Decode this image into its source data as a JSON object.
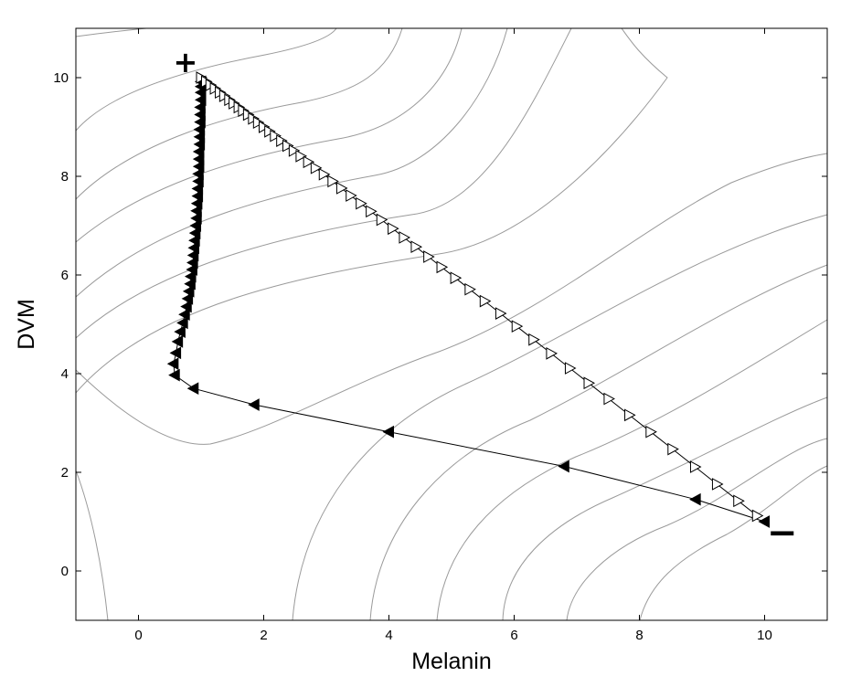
{
  "chart_data": {
    "type": "line",
    "title": "",
    "xlabel": "Melanin",
    "ylabel": "DVM",
    "xlim": [
      -1,
      11
    ],
    "ylim": [
      -1,
      11
    ],
    "xticks": [
      0,
      2,
      4,
      6,
      8,
      10
    ],
    "yticks": [
      0,
      2,
      4,
      6,
      8,
      10
    ],
    "grid": false,
    "legend": "none",
    "annotations": [
      {
        "text": "+",
        "x": 0.75,
        "y": 10.3
      },
      {
        "text": "−",
        "x": 10.28,
        "y": 0.68
      }
    ],
    "colors": {
      "contour": "#9a9a9a",
      "trajectory": "#000000",
      "axis": "#000000"
    },
    "series": [
      {
        "marker": "filled-left-triangle",
        "points": [
          [
            10.0,
            1.0
          ],
          [
            8.9,
            1.45
          ],
          [
            6.8,
            2.12
          ],
          [
            4.0,
            2.82
          ],
          [
            1.85,
            3.37
          ],
          [
            0.88,
            3.7
          ],
          [
            0.58,
            3.97
          ],
          [
            0.56,
            4.2
          ],
          [
            0.6,
            4.42
          ],
          [
            0.63,
            4.65
          ],
          [
            0.67,
            4.85
          ],
          [
            0.71,
            5.03
          ],
          [
            0.74,
            5.2
          ],
          [
            0.77,
            5.36
          ],
          [
            0.79,
            5.52
          ],
          [
            0.81,
            5.67
          ],
          [
            0.83,
            5.82
          ],
          [
            0.84,
            5.97
          ],
          [
            0.86,
            6.11
          ],
          [
            0.87,
            6.25
          ],
          [
            0.88,
            6.4
          ],
          [
            0.89,
            6.55
          ],
          [
            0.9,
            6.7
          ],
          [
            0.91,
            6.85
          ],
          [
            0.92,
            7.0
          ],
          [
            0.93,
            7.15
          ],
          [
            0.93,
            7.3
          ],
          [
            0.94,
            7.45
          ],
          [
            0.95,
            7.6
          ],
          [
            0.95,
            7.75
          ],
          [
            0.96,
            7.9
          ],
          [
            0.96,
            8.05
          ],
          [
            0.97,
            8.2
          ],
          [
            0.97,
            8.35
          ],
          [
            0.97,
            8.5
          ],
          [
            0.98,
            8.65
          ],
          [
            0.98,
            8.8
          ],
          [
            0.98,
            8.95
          ],
          [
            0.99,
            9.1
          ],
          [
            0.99,
            9.25
          ],
          [
            0.99,
            9.4
          ],
          [
            1.0,
            9.55
          ],
          [
            1.0,
            9.7
          ],
          [
            1.0,
            9.82
          ],
          [
            1.0,
            9.92
          ]
        ]
      },
      {
        "marker": "open-right-triangle",
        "points": [
          [
            1.0,
            10.0
          ],
          [
            1.08,
            9.92
          ],
          [
            1.15,
            9.85
          ],
          [
            1.22,
            9.78
          ],
          [
            1.3,
            9.7
          ],
          [
            1.37,
            9.63
          ],
          [
            1.45,
            9.55
          ],
          [
            1.52,
            9.48
          ],
          [
            1.6,
            9.4
          ],
          [
            1.67,
            9.33
          ],
          [
            1.75,
            9.25
          ],
          [
            1.83,
            9.17
          ],
          [
            1.91,
            9.09
          ],
          [
            2.0,
            9.0
          ],
          [
            2.09,
            8.91
          ],
          [
            2.18,
            8.82
          ],
          [
            2.28,
            8.72
          ],
          [
            2.38,
            8.62
          ],
          [
            2.48,
            8.52
          ],
          [
            2.59,
            8.41
          ],
          [
            2.71,
            8.29
          ],
          [
            2.83,
            8.17
          ],
          [
            2.96,
            8.04
          ],
          [
            3.1,
            7.9
          ],
          [
            3.24,
            7.76
          ],
          [
            3.39,
            7.61
          ],
          [
            3.55,
            7.45
          ],
          [
            3.71,
            7.29
          ],
          [
            3.88,
            7.12
          ],
          [
            4.06,
            6.94
          ],
          [
            4.24,
            6.76
          ],
          [
            4.43,
            6.57
          ],
          [
            4.63,
            6.37
          ],
          [
            4.84,
            6.16
          ],
          [
            5.06,
            5.94
          ],
          [
            5.29,
            5.71
          ],
          [
            5.53,
            5.47
          ],
          [
            5.78,
            5.22
          ],
          [
            6.04,
            4.96
          ],
          [
            6.31,
            4.69
          ],
          [
            6.59,
            4.41
          ],
          [
            6.89,
            4.11
          ],
          [
            7.19,
            3.81
          ],
          [
            7.51,
            3.49
          ],
          [
            7.84,
            3.16
          ],
          [
            8.18,
            2.82
          ],
          [
            8.53,
            2.47
          ],
          [
            8.89,
            2.11
          ],
          [
            9.24,
            1.76
          ],
          [
            9.58,
            1.42
          ],
          [
            9.88,
            1.12
          ]
        ]
      }
    ]
  }
}
